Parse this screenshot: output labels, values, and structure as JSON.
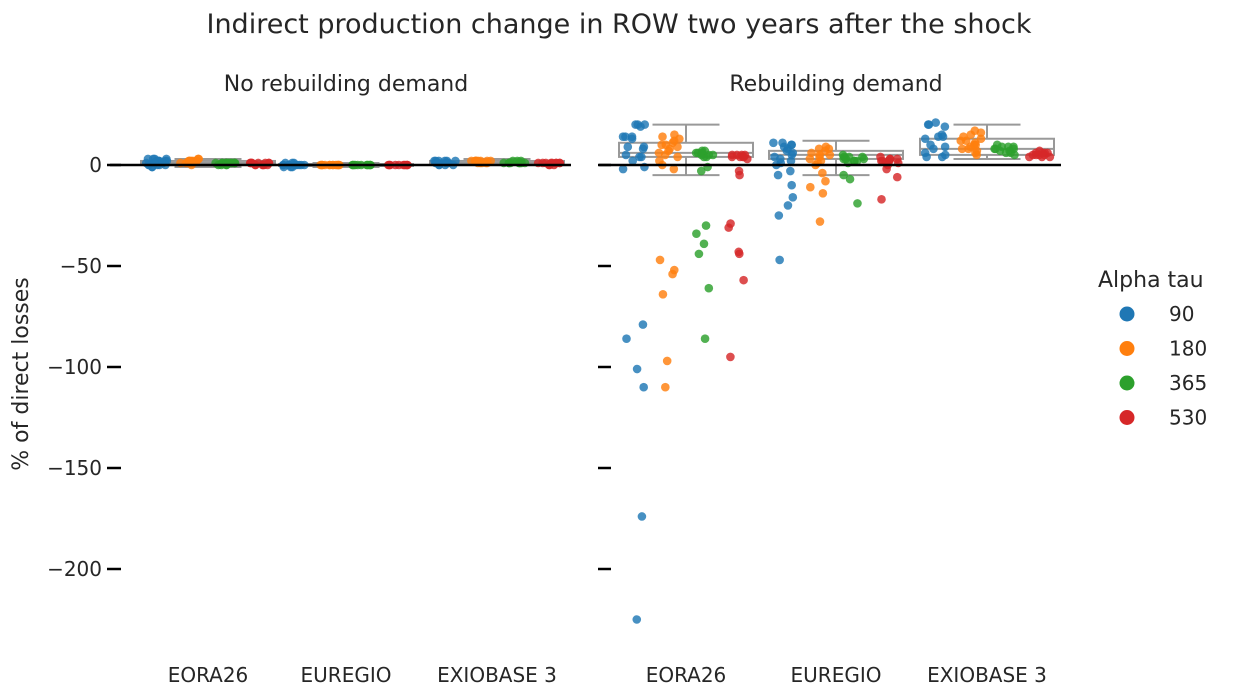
{
  "chart_data": {
    "type": "scatter",
    "title": "Indirect production change in ROW two years after the shock",
    "ylabel": "% of direct losses",
    "ylim": [
      -240,
      25
    ],
    "yticks": [
      0,
      -50,
      -100,
      -150,
      -200
    ],
    "ytick_labels": [
      "0",
      "−50",
      "−100",
      "−150",
      "−200"
    ],
    "categories": [
      "EORA26",
      "EUREGIO",
      "EXIOBASE 3"
    ],
    "grid": false,
    "legend": {
      "title": "Alpha tau",
      "placement": "right",
      "entries": [
        {
          "label": "90",
          "color": "#1f77b4"
        },
        {
          "label": "180",
          "color": "#ff7f0e"
        },
        {
          "label": "365",
          "color": "#2ca02c"
        },
        {
          "label": "530",
          "color": "#d62728"
        }
      ]
    },
    "panels": [
      {
        "title": "No rebuilding demand",
        "boxes": [
          {
            "category": "EORA26",
            "q1": 0,
            "median": 1,
            "q3": 2,
            "whisker_low": -1,
            "whisker_high": 3
          },
          {
            "category": "EUREGIO",
            "q1": -0.5,
            "median": 0,
            "q3": 0.5,
            "whisker_low": -1,
            "whisker_high": 1
          },
          {
            "category": "EXIOBASE 3",
            "q1": 0.5,
            "median": 1,
            "q3": 2,
            "whisker_low": 0,
            "whisker_high": 3
          }
        ],
        "points": [
          {
            "category": "EORA26",
            "alpha": "90",
            "y": [
              2,
              1,
              0,
              3,
              1,
              2,
              0,
              -1,
              2,
              3,
              1,
              0,
              2,
              1,
              3,
              0,
              1,
              2,
              -1,
              1,
              2,
              0,
              1,
              3
            ]
          },
          {
            "category": "EORA26",
            "alpha": "180",
            "y": [
              2,
              1,
              2,
              1,
              3,
              2,
              1,
              0,
              2,
              1,
              2,
              1,
              2,
              3,
              1,
              2
            ]
          },
          {
            "category": "EORA26",
            "alpha": "365",
            "y": [
              1,
              1,
              0,
              1,
              1,
              0,
              1,
              1,
              0,
              1,
              1,
              1,
              0,
              1,
              1,
              1
            ]
          },
          {
            "category": "EORA26",
            "alpha": "530",
            "y": [
              1,
              0,
              1,
              0,
              1,
              0,
              1,
              0,
              1,
              0,
              1,
              0,
              1,
              1
            ]
          },
          {
            "category": "EUREGIO",
            "alpha": "90",
            "y": [
              0,
              0,
              -1,
              1,
              0,
              0,
              -1,
              0,
              1,
              0,
              0,
              0,
              0,
              1,
              -1,
              0
            ]
          },
          {
            "category": "EUREGIO",
            "alpha": "180",
            "y": [
              0,
              0,
              0,
              0,
              0,
              0,
              0,
              0,
              0,
              0,
              0,
              0,
              0,
              0
            ]
          },
          {
            "category": "EUREGIO",
            "alpha": "365",
            "y": [
              0,
              0,
              0,
              0,
              0,
              0,
              0,
              0,
              0,
              0,
              0,
              0
            ]
          },
          {
            "category": "EUREGIO",
            "alpha": "530",
            "y": [
              0,
              0,
              0,
              0,
              0,
              0,
              0,
              0,
              0,
              0,
              0,
              0
            ]
          },
          {
            "category": "EXIOBASE 3",
            "alpha": "90",
            "y": [
              2,
              1,
              0,
              2,
              1,
              2,
              0,
              1,
              2,
              1,
              0,
              2,
              1,
              2,
              1,
              0
            ]
          },
          {
            "category": "EXIOBASE 3",
            "alpha": "180",
            "y": [
              2,
              2,
              1,
              2,
              1,
              2,
              2,
              1,
              2,
              1,
              2,
              2,
              1,
              2
            ]
          },
          {
            "category": "EXIOBASE 3",
            "alpha": "365",
            "y": [
              1,
              1,
              2,
              1,
              1,
              1,
              2,
              1,
              1,
              1,
              1,
              2
            ]
          },
          {
            "category": "EXIOBASE 3",
            "alpha": "530",
            "y": [
              1,
              1,
              0,
              1,
              1,
              0,
              1,
              1,
              1,
              0,
              1,
              1
            ]
          }
        ]
      },
      {
        "title": "Rebuilding demand",
        "boxes": [
          {
            "category": "EORA26",
            "q1": 4,
            "median": 6,
            "q3": 11,
            "whisker_low": -5,
            "whisker_high": 20
          },
          {
            "category": "EUREGIO",
            "q1": 3,
            "median": 5,
            "q3": 7,
            "whisker_low": -5,
            "whisker_high": 12
          },
          {
            "category": "EXIOBASE 3",
            "q1": 5,
            "median": 8,
            "q3": 13,
            "whisker_low": 3,
            "whisker_high": 20
          }
        ],
        "points": [
          {
            "category": "EORA26",
            "alpha": "90",
            "y": [
              20,
              20,
              19,
              20,
              14,
              14,
              13,
              14,
              9,
              9,
              8,
              4,
              4,
              5,
              2,
              -1,
              -2,
              -79,
              -86,
              -101,
              -110,
              -174,
              -225
            ]
          },
          {
            "category": "EORA26",
            "alpha": "180",
            "y": [
              15,
              14,
              13,
              12,
              11,
              10,
              10,
              9,
              8,
              7,
              6,
              5,
              4,
              2,
              0,
              -2,
              -47,
              -52,
              -54,
              -64,
              -97,
              -110
            ]
          },
          {
            "category": "EORA26",
            "alpha": "365",
            "y": [
              7,
              6,
              6,
              5,
              5,
              4,
              4,
              6,
              7,
              5,
              -1,
              -3,
              -30,
              -34,
              -39,
              -44,
              -61,
              -86
            ]
          },
          {
            "category": "EORA26",
            "alpha": "530",
            "y": [
              5,
              5,
              4,
              4,
              5,
              4,
              3,
              5,
              4,
              -3,
              -5,
              -29,
              -31,
              -43,
              -44,
              -57,
              -95
            ]
          },
          {
            "category": "EUREGIO",
            "alpha": "90",
            "y": [
              11,
              11,
              10,
              10,
              9,
              8,
              7,
              6,
              5,
              4,
              3,
              2,
              1,
              0,
              -3,
              -5,
              -10,
              -16,
              -20,
              -25,
              -47
            ]
          },
          {
            "category": "EUREGIO",
            "alpha": "180",
            "y": [
              9,
              8,
              8,
              7,
              6,
              5,
              5,
              4,
              3,
              2,
              1,
              0,
              -4,
              -8,
              -11,
              -14,
              -28
            ]
          },
          {
            "category": "EUREGIO",
            "alpha": "365",
            "y": [
              5,
              4,
              4,
              3,
              3,
              2,
              2,
              1,
              4,
              3,
              2,
              -5,
              -7,
              -19
            ]
          },
          {
            "category": "EUREGIO",
            "alpha": "530",
            "y": [
              4,
              3,
              3,
              2,
              2,
              1,
              0,
              3,
              2,
              1,
              -2,
              -6,
              -17
            ]
          },
          {
            "category": "EXIOBASE 3",
            "alpha": "90",
            "y": [
              21,
              20,
              20,
              19,
              15,
              14,
              14,
              13,
              10,
              9,
              8,
              6,
              5,
              4,
              4
            ]
          },
          {
            "category": "EXIOBASE 3",
            "alpha": "180",
            "y": [
              17,
              16,
              15,
              14,
              13,
              12,
              11,
              10,
              9,
              8,
              7,
              6,
              5,
              8,
              10,
              12
            ]
          },
          {
            "category": "EXIOBASE 3",
            "alpha": "365",
            "y": [
              10,
              9,
              9,
              8,
              8,
              7,
              7,
              6,
              6,
              5,
              8,
              9
            ]
          },
          {
            "category": "EXIOBASE 3",
            "alpha": "530",
            "y": [
              7,
              6,
              6,
              5,
              5,
              4,
              4,
              5,
              6,
              5,
              4,
              6
            ]
          }
        ]
      }
    ]
  }
}
